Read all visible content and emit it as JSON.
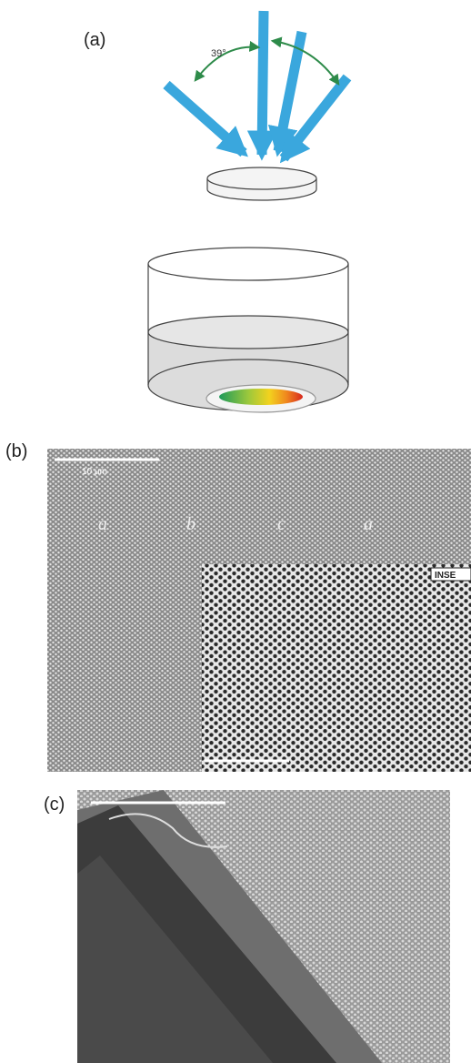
{
  "panel_a": {
    "label": "(a)",
    "angle_label": "39°"
  },
  "panel_b": {
    "label": "(b)",
    "scale_bar": "10 µm",
    "stacking": [
      "a",
      "b",
      "c",
      "a"
    ],
    "inset_label": "INSE"
  },
  "panel_c": {
    "label": "(c)"
  }
}
